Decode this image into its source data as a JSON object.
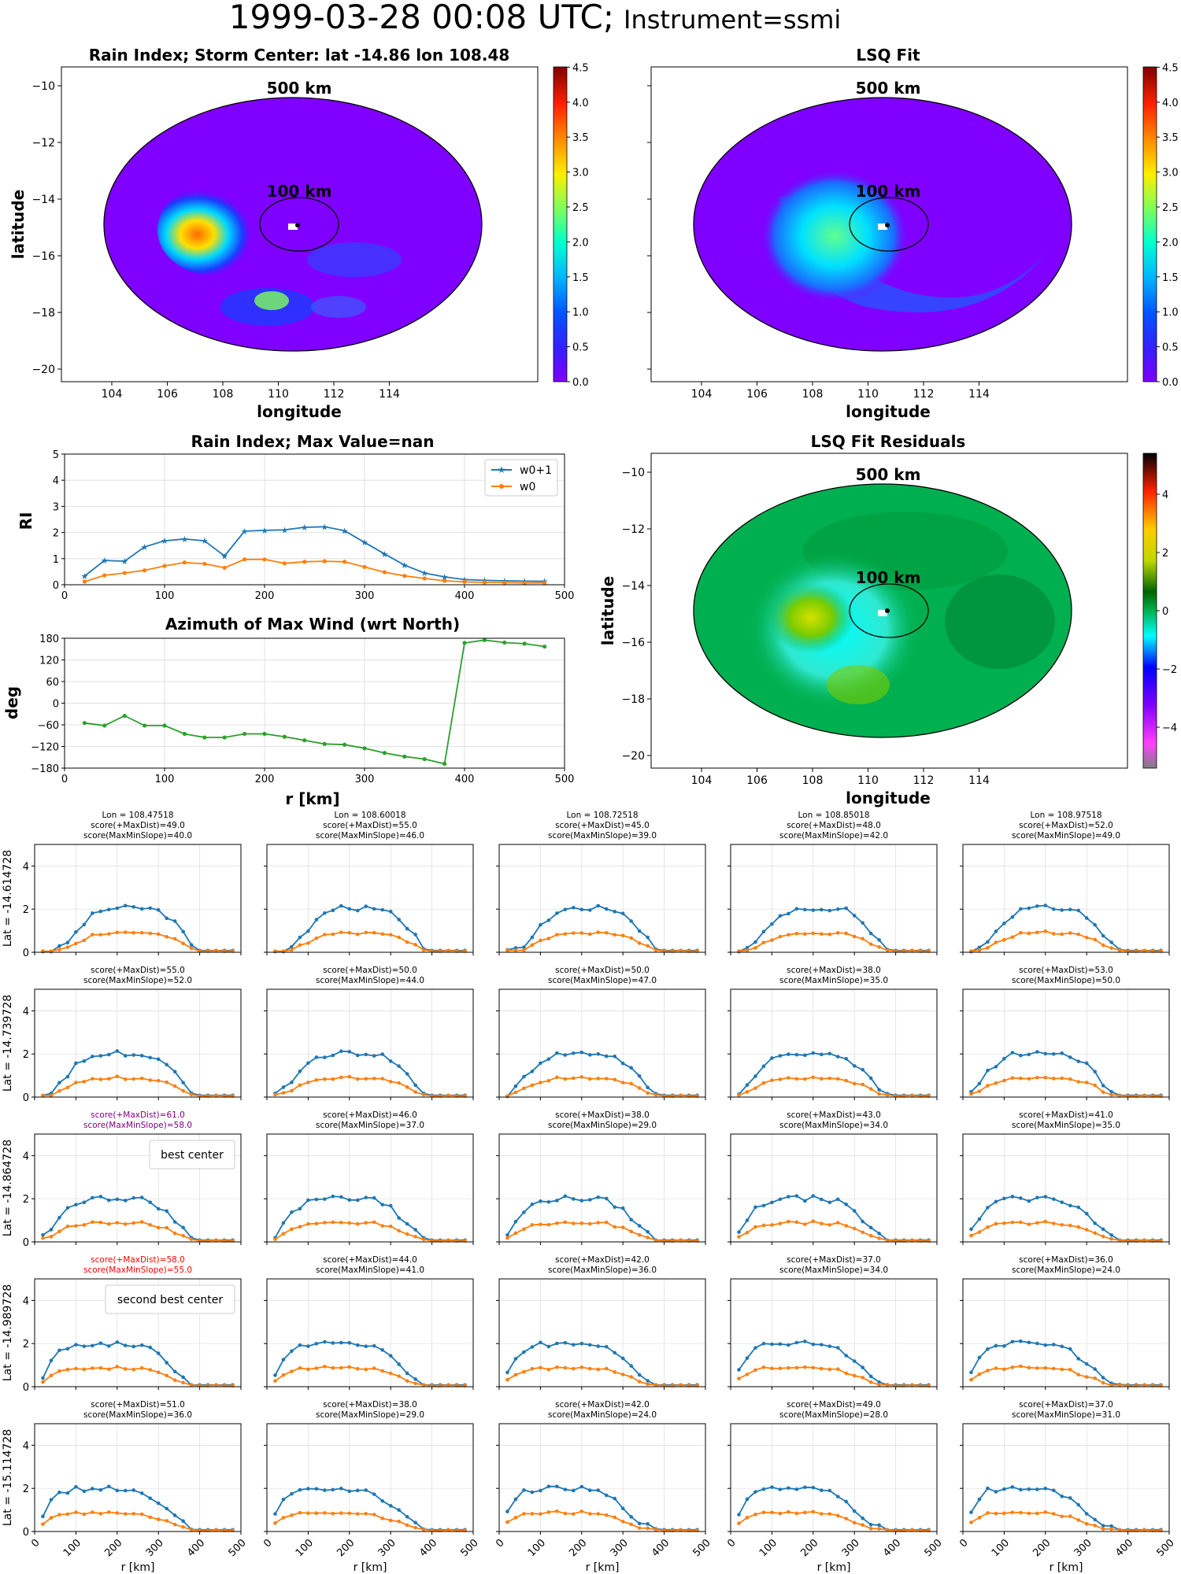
{
  "suptitle": {
    "main": "1999-03-28 00:08 UTC;",
    "instrument": "Instrument=ssmi"
  },
  "maps": {
    "rain_index": {
      "title": "Rain Index; Storm Center: lat -14.86 lon 108.48",
      "xlabel": "longitude",
      "ylabel": "latitude"
    },
    "lsq_fit": {
      "title": "LSQ Fit",
      "xlabel": "longitude",
      "ylabel": ""
    },
    "residuals": {
      "title": "LSQ Fit Residuals",
      "xlabel": "longitude",
      "ylabel": "latitude"
    },
    "lon_ticks": [
      "104",
      "106",
      "108",
      "110",
      "112",
      "114"
    ],
    "lat_ticks": [
      "−10",
      "−12",
      "−14",
      "−16",
      "−18",
      "−20"
    ],
    "ring_labels": [
      "500 km",
      "100 km"
    ],
    "colorbar_ticks": [
      "0.0",
      "0.5",
      "1.0",
      "1.5",
      "2.0",
      "2.5",
      "3.0",
      "3.5",
      "4.0",
      "4.5"
    ],
    "residual_colorbar_ticks": [
      "4",
      "2",
      "0",
      "−2",
      "−4"
    ]
  },
  "chart_data": [
    {
      "type": "line",
      "title": "Rain Index; Max Value=nan",
      "xlabel": "",
      "ylabel": "RI",
      "xlim": [
        0,
        500
      ],
      "ylim": [
        0,
        5
      ],
      "x_ticks": [
        "0",
        "100",
        "200",
        "300",
        "400",
        "500"
      ],
      "y_ticks": [
        "0",
        "1",
        "2",
        "3",
        "4",
        "5"
      ],
      "legend": "top-right",
      "x": [
        20,
        40,
        60,
        80,
        100,
        120,
        140,
        160,
        180,
        200,
        220,
        240,
        260,
        280,
        300,
        320,
        340,
        360,
        380,
        400,
        420,
        440,
        460,
        480
      ],
      "series": [
        {
          "name": "w0+1",
          "color": "#1f77b4",
          "values": [
            0.33,
            0.93,
            0.9,
            1.45,
            1.68,
            1.75,
            1.68,
            1.1,
            2.05,
            2.08,
            2.1,
            2.2,
            2.22,
            2.07,
            1.62,
            1.18,
            0.75,
            0.45,
            0.3,
            0.2,
            0.17,
            0.15,
            0.14,
            0.13
          ]
        },
        {
          "name": "w0",
          "color": "#ff7f0e",
          "values": [
            0.12,
            0.36,
            0.45,
            0.55,
            0.72,
            0.85,
            0.8,
            0.65,
            0.97,
            0.97,
            0.82,
            0.88,
            0.9,
            0.88,
            0.68,
            0.48,
            0.34,
            0.24,
            0.15,
            0.11,
            0.09,
            0.08,
            0.07,
            0.07
          ]
        }
      ]
    },
    {
      "type": "line",
      "title": "Azimuth of Max Wind (wrt North)",
      "xlabel": "r [km]",
      "ylabel": "deg",
      "xlim": [
        0,
        500
      ],
      "ylim": [
        -180,
        180
      ],
      "x_ticks": [
        "0",
        "100",
        "200",
        "300",
        "400",
        "500"
      ],
      "y_ticks": [
        "180",
        "120",
        "60",
        "0",
        "−60",
        "−120",
        "−180"
      ],
      "x": [
        20,
        40,
        60,
        80,
        100,
        120,
        140,
        160,
        180,
        200,
        220,
        240,
        260,
        280,
        300,
        320,
        340,
        360,
        380,
        400,
        420,
        440,
        460,
        480
      ],
      "series": [
        {
          "name": "",
          "color": "#2ca02c",
          "values": [
            -55,
            -62,
            -35,
            -62,
            -62,
            -85,
            -95,
            -95,
            -85,
            -85,
            -93,
            -103,
            -113,
            -115,
            -125,
            -138,
            -148,
            -155,
            -168,
            167,
            175,
            168,
            165,
            157
          ]
        }
      ]
    }
  ],
  "grid": {
    "x_tick_labels": [
      "0",
      "100",
      "200",
      "300",
      "400",
      "500"
    ],
    "y_tick_labels": [
      "0",
      "2",
      "4"
    ],
    "xlabel": "r [km]",
    "cells": [
      [
        {
          "lon": "Lon = 108.47518",
          "s1": "score(+MaxDist)=49.0",
          "s2": "score(MaxMinSlope)=40.0"
        },
        {
          "lon": "Lon = 108.60018",
          "s1": "score(+MaxDist)=55.0",
          "s2": "score(MaxMinSlope)=46.0"
        },
        {
          "lon": "Lon = 108.72518",
          "s1": "score(+MaxDist)=45.0",
          "s2": "score(MaxMinSlope)=39.0"
        },
        {
          "lon": "Lon = 108.85018",
          "s1": "score(+MaxDist)=48.0",
          "s2": "score(MaxMinSlope)=42.0"
        },
        {
          "lon": "Lon = 108.97518",
          "s1": "score(+MaxDist)=52.0",
          "s2": "score(MaxMinSlope)=49.0"
        }
      ],
      [
        {
          "s1": "score(+MaxDist)=55.0",
          "s2": "score(MaxMinSlope)=52.0"
        },
        {
          "s1": "score(+MaxDist)=50.0",
          "s2": "score(MaxMinSlope)=44.0"
        },
        {
          "s1": "score(+MaxDist)=50.0",
          "s2": "score(MaxMinSlope)=47.0"
        },
        {
          "s1": "score(+MaxDist)=38.0",
          "s2": "score(MaxMinSlope)=35.0"
        },
        {
          "s1": "score(+MaxDist)=53.0",
          "s2": "score(MaxMinSlope)=50.0"
        }
      ],
      [
        {
          "s1": "score(+MaxDist)=61.0",
          "s2": "score(MaxMinSlope)=58.0",
          "color": "#800080",
          "legend": "best center"
        },
        {
          "s1": "score(+MaxDist)=46.0",
          "s2": "score(MaxMinSlope)=37.0"
        },
        {
          "s1": "score(+MaxDist)=38.0",
          "s2": "score(MaxMinSlope)=29.0"
        },
        {
          "s1": "score(+MaxDist)=43.0",
          "s2": "score(MaxMinSlope)=34.0"
        },
        {
          "s1": "score(+MaxDist)=41.0",
          "s2": "score(MaxMinSlope)=35.0"
        }
      ],
      [
        {
          "s1": "score(+MaxDist)=58.0",
          "s2": "score(MaxMinSlope)=55.0",
          "color": "#ff0000",
          "legend": "second best center"
        },
        {
          "s1": "score(+MaxDist)=44.0",
          "s2": "score(MaxMinSlope)=41.0"
        },
        {
          "s1": "score(+MaxDist)=42.0",
          "s2": "score(MaxMinSlope)=36.0"
        },
        {
          "s1": "score(+MaxDist)=37.0",
          "s2": "score(MaxMinSlope)=34.0"
        },
        {
          "s1": "score(+MaxDist)=36.0",
          "s2": "score(MaxMinSlope)=24.0"
        }
      ],
      [
        {
          "s1": "score(+MaxDist)=51.0",
          "s2": "score(MaxMinSlope)=36.0"
        },
        {
          "s1": "score(+MaxDist)=38.0",
          "s2": "score(MaxMinSlope)=29.0"
        },
        {
          "s1": "score(+MaxDist)=42.0",
          "s2": "score(MaxMinSlope)=24.0"
        },
        {
          "s1": "score(+MaxDist)=49.0",
          "s2": "score(MaxMinSlope)=28.0"
        },
        {
          "s1": "score(+MaxDist)=37.0",
          "s2": "score(MaxMinSlope)=31.0"
        }
      ]
    ],
    "row_labels": [
      "Lat = -14.614728",
      "Lat = -14.739728",
      "Lat = -14.864728",
      "Lat = -14.989728",
      "Lat = -15.114728"
    ]
  }
}
